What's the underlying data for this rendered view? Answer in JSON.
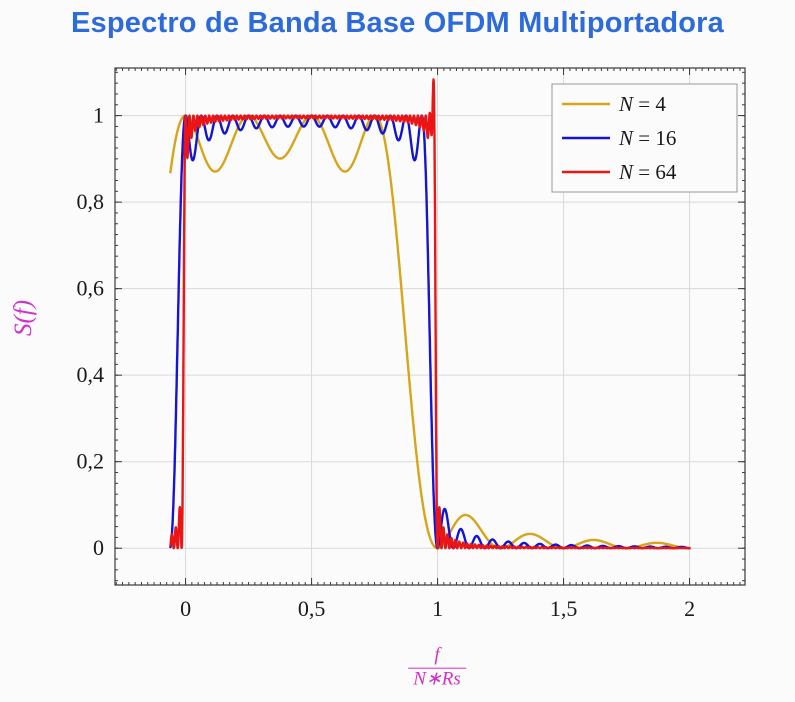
{
  "page": {
    "background": "#fbfbfb"
  },
  "colors": {
    "title": "#2d6bd9",
    "axis_labels": "#d230c8",
    "frame": "#3a3a3a",
    "grid": "#d9d9d9",
    "tick_text": "#1a1a1a",
    "legend_border": "#9a9a9a",
    "legend_bg": "#fbfbfb"
  },
  "chart_data": {
    "type": "line",
    "title": "Espectro de Banda Base OFDM Multiportadora",
    "ylabel": "S(f)",
    "xlabel": "f / (N∗Rs)",
    "xlabel_frac": {
      "num": "f",
      "den": "N∗Rs"
    },
    "xlim": [
      -0.28,
      2.22
    ],
    "ylim": [
      -0.085,
      1.11
    ],
    "x_ticks": [
      {
        "v": 0,
        "label": "0"
      },
      {
        "v": 0.5,
        "label": "0,5"
      },
      {
        "v": 1,
        "label": "1"
      },
      {
        "v": 1.5,
        "label": "1,5"
      },
      {
        "v": 2,
        "label": "2"
      }
    ],
    "y_ticks": [
      {
        "v": 1,
        "label": "1"
      },
      {
        "v": 0.8,
        "label": "0,8"
      },
      {
        "v": 0.6,
        "label": "0,6"
      },
      {
        "v": 0.4,
        "label": "0,4"
      },
      {
        "v": 0.2,
        "label": "0,2"
      },
      {
        "v": 0,
        "label": "0"
      }
    ],
    "x_minor_step": 0.025,
    "y_minor_step": 0.025,
    "grid": "major",
    "legend_position": "top-right",
    "model": "S(u) = Σ_{k=0}^{N-1} sinc²(N·u − k),  sinc(x)=sin(πx)/(πx), u = f/(N·Rs)",
    "domain": [
      -0.06,
      2.0
    ],
    "samples": 2200,
    "series": [
      {
        "label_var": "N",
        "label_rest": " = 4",
        "N": 4,
        "color": "#d6a51c"
      },
      {
        "label_var": "N",
        "label_rest": " = 16",
        "N": 16,
        "color": "#1414d2"
      },
      {
        "label_var": "N",
        "label_rest": " = 64",
        "N": 64,
        "color": "#ea1515",
        "edge_overshoot": 0.09,
        "overshoot_centers": [
          0.982
        ],
        "overshoot_width": 0.008
      }
    ]
  }
}
